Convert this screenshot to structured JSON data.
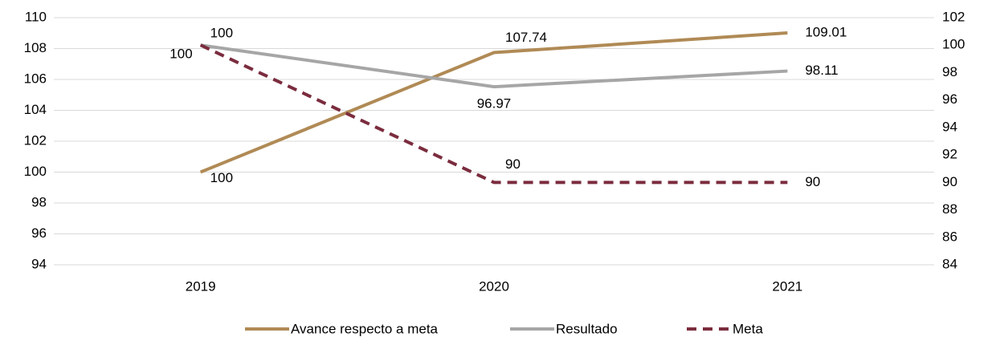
{
  "chart_data": {
    "type": "line",
    "categories": [
      "2019",
      "2020",
      "2021"
    ],
    "ylim": [
      94,
      110
    ],
    "yticks": [
      94,
      96,
      98,
      100,
      102,
      104,
      106,
      108,
      110
    ],
    "y2lim": [
      84,
      102
    ],
    "y2ticks": [
      84,
      86,
      88,
      90,
      92,
      94,
      96,
      98,
      100,
      102
    ],
    "grid": true,
    "legend": "bottom",
    "series": [
      {
        "name": "Avance respecto a meta",
        "color": "#b08a55",
        "line_style": "solid",
        "values": [
          100,
          107.74,
          109.01
        ]
      },
      {
        "name": "Resultado",
        "color": "#a6a6a6",
        "axis": "y2",
        "line_style": "solid",
        "values": [
          100,
          96.97,
          98.11
        ]
      },
      {
        "name": "Meta",
        "color": "#7b2c3e",
        "axis": "y2",
        "line_style": "dashed",
        "values": [
          100,
          90,
          90
        ]
      }
    ]
  }
}
